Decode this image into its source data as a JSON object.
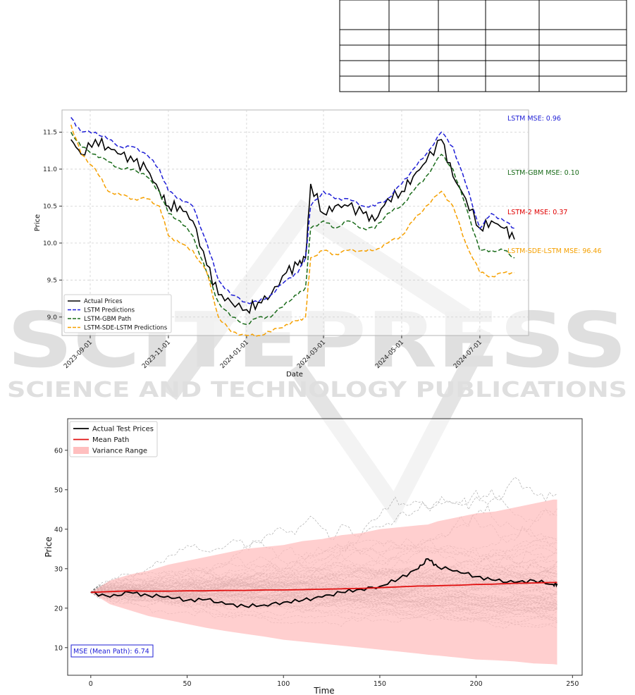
{
  "watermark": {
    "title": "SCITEPRESS",
    "subtitle": "SCIENCE AND TECHNOLOGY PUBLICATIONS"
  },
  "table": {
    "rows": 5,
    "cols": 5
  },
  "chart_data": [
    {
      "type": "line",
      "xlabel": "Date",
      "ylabel": "Price",
      "x_ticks": [
        "2023-09-01",
        "2023-11-01",
        "2024-01-01",
        "2024-03-01",
        "2024-05-01",
        "2024-07-01"
      ],
      "y_ticks": [
        9.0,
        9.5,
        10.0,
        10.5,
        11.0,
        11.5
      ],
      "ylim": [
        8.75,
        11.8
      ],
      "grid": true,
      "legend_position": "bottom-left",
      "x_points": [
        "2023-08-17",
        "2023-08-25",
        "2023-09-05",
        "2023-09-15",
        "2023-09-25",
        "2023-10-05",
        "2023-10-15",
        "2023-10-25",
        "2023-11-01",
        "2023-11-10",
        "2023-11-20",
        "2023-12-01",
        "2023-12-10",
        "2023-12-20",
        "2024-01-01",
        "2024-01-10",
        "2024-01-20",
        "2024-02-01",
        "2024-02-10",
        "2024-02-16",
        "2024-02-20",
        "2024-03-01",
        "2024-03-10",
        "2024-03-20",
        "2024-04-01",
        "2024-04-10",
        "2024-04-20",
        "2024-05-01",
        "2024-05-10",
        "2024-05-20",
        "2024-06-01",
        "2024-06-10",
        "2024-06-20",
        "2024-07-01",
        "2024-07-10",
        "2024-07-20",
        "2024-07-28"
      ],
      "series": [
        {
          "name": "Actual Prices",
          "color": "#000000",
          "dash": "solid",
          "values": [
            11.4,
            11.2,
            11.4,
            11.3,
            11.2,
            11.1,
            11.0,
            10.7,
            10.5,
            10.5,
            10.3,
            9.7,
            9.3,
            9.2,
            9.1,
            9.2,
            9.3,
            9.6,
            9.7,
            9.8,
            10.8,
            10.4,
            10.5,
            10.5,
            10.4,
            10.3,
            10.6,
            10.7,
            10.9,
            11.1,
            11.4,
            10.9,
            10.6,
            10.2,
            10.3,
            10.2,
            10.05
          ]
        },
        {
          "name": "LSTM Predictions",
          "color": "#1f1fd6",
          "dash": "dashed",
          "values": [
            11.7,
            11.5,
            11.5,
            11.4,
            11.3,
            11.3,
            11.2,
            11.0,
            10.7,
            10.6,
            10.5,
            10.0,
            9.5,
            9.3,
            9.2,
            9.2,
            9.3,
            9.5,
            9.6,
            9.8,
            10.5,
            10.7,
            10.6,
            10.6,
            10.5,
            10.5,
            10.6,
            10.8,
            11.0,
            11.2,
            11.5,
            11.3,
            10.8,
            10.2,
            10.4,
            10.3,
            10.2
          ]
        },
        {
          "name": "LSTM-GBM Path",
          "color": "#1a6b1a",
          "dash": "dashed",
          "values": [
            11.5,
            11.3,
            11.2,
            11.1,
            11.0,
            11.0,
            10.9,
            10.7,
            10.4,
            10.3,
            10.1,
            9.6,
            9.2,
            9.0,
            8.9,
            9.0,
            9.0,
            9.2,
            9.3,
            9.4,
            10.2,
            10.3,
            10.2,
            10.3,
            10.2,
            10.2,
            10.4,
            10.5,
            10.7,
            10.9,
            11.2,
            11.0,
            10.5,
            9.9,
            9.9,
            9.9,
            9.8
          ]
        },
        {
          "name": "LSTM-SDE-LSTM Predictions",
          "color": "#f5a000",
          "dash": "dashed",
          "values": [
            11.6,
            11.2,
            11.0,
            10.7,
            10.65,
            10.6,
            10.6,
            10.5,
            10.1,
            10.0,
            9.9,
            9.6,
            9.0,
            8.8,
            8.75,
            8.75,
            8.8,
            8.9,
            8.95,
            9.0,
            9.8,
            9.9,
            9.85,
            9.9,
            9.9,
            9.9,
            10.0,
            10.1,
            10.3,
            10.5,
            10.7,
            10.5,
            10.0,
            9.6,
            9.55,
            9.6,
            9.6
          ]
        }
      ],
      "annotations": [
        {
          "text": "LSTM MSE: 0.96",
          "color": "#1f1fd6"
        },
        {
          "text": "LSTM-GBM MSE: 0.10",
          "color": "#1a6b1a"
        },
        {
          "text": "LSTM-2 MSE: 0.37",
          "color": "#e00000"
        },
        {
          "text": "LSTM-SDE-LSTM MSE: 96.46",
          "color": "#f5a000"
        }
      ]
    },
    {
      "type": "line",
      "xlabel": "Time",
      "ylabel": "Price",
      "x_ticks": [
        0,
        50,
        100,
        150,
        200,
        250
      ],
      "y_ticks": [
        10,
        20,
        30,
        40,
        50,
        60
      ],
      "xlim": [
        -12,
        255
      ],
      "ylim": [
        3,
        68
      ],
      "grid": false,
      "legend_position": "top-left",
      "num_simulated_paths": 80,
      "simulated_path_color": "#777777",
      "time": [
        0,
        10,
        20,
        30,
        40,
        50,
        60,
        70,
        80,
        90,
        100,
        110,
        120,
        130,
        140,
        150,
        160,
        170,
        175,
        180,
        190,
        200,
        210,
        220,
        230,
        240,
        242
      ],
      "series": [
        {
          "name": "Actual Test Prices",
          "color": "#000000",
          "values": [
            24,
            22.8,
            24,
            23.2,
            23,
            22,
            22.2,
            21,
            20.5,
            20.8,
            21.5,
            22,
            22.8,
            24,
            24.8,
            25.5,
            27.5,
            30,
            32.5,
            30.5,
            29.5,
            28,
            27,
            26.5,
            27,
            26,
            26.2
          ]
        },
        {
          "name": "Mean Path",
          "color": "#e01010",
          "values": [
            24,
            24.2,
            24.4,
            24.3,
            24.3,
            24.4,
            24.4,
            24.5,
            24.5,
            24.6,
            24.6,
            24.7,
            24.8,
            24.9,
            25,
            25.2,
            25.4,
            25.6,
            25.6,
            25.7,
            25.8,
            26,
            26.1,
            26.3,
            26.4,
            26.5,
            26.5
          ]
        }
      ],
      "variance_range": {
        "name": "Variance Range",
        "color": "#ffbfbf",
        "upper": [
          24,
          27,
          28.5,
          29.5,
          31,
          32,
          33,
          34,
          35,
          35.5,
          36,
          37,
          37.5,
          38.5,
          39,
          40,
          40.5,
          41,
          41.2,
          42,
          43,
          44,
          44.5,
          45.5,
          46.5,
          47.5,
          47.5
        ],
        "lower": [
          24,
          21,
          19.5,
          18,
          17,
          16,
          15,
          14.2,
          13.5,
          12.8,
          12,
          11.5,
          11,
          10.5,
          10,
          9.5,
          9,
          8.5,
          8.2,
          8,
          7.5,
          7,
          6.8,
          6.5,
          6,
          5.8,
          5.7
        ]
      },
      "annotation": "MSE (Mean Path): 6.74"
    }
  ]
}
